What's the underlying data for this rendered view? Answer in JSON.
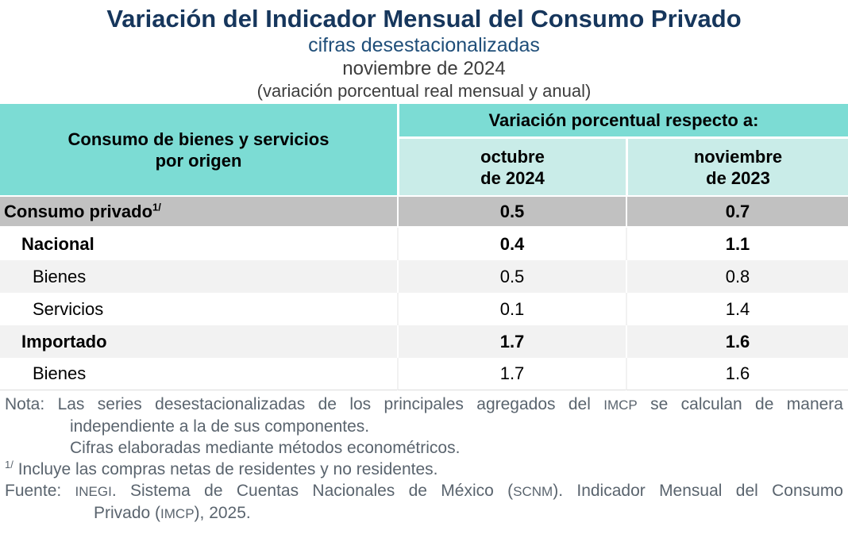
{
  "chart_data": {
    "type": "table",
    "title": "Variación del Indicador Mensual del Consumo Privado",
    "subtitle": "cifras desestacionalizadas",
    "period": "noviembre de 2024",
    "units_note": "(variación porcentual real mensual y anual)",
    "row_header": "Consumo de bienes y servicios\npor origen",
    "group_header": "Variación porcentual respecto a:",
    "col_headers": [
      "octubre\nde 2024",
      "noviembre\nde 2023"
    ],
    "rows": [
      {
        "label": "Consumo privado",
        "footnote_mark": "1/",
        "vs_octubre_2024": 0.5,
        "vs_noviembre_2023": 0.7
      },
      {
        "label": "Nacional",
        "vs_octubre_2024": 0.4,
        "vs_noviembre_2023": 1.1
      },
      {
        "label": "Bienes",
        "vs_octubre_2024": 0.5,
        "vs_noviembre_2023": 0.8
      },
      {
        "label": "Servicios",
        "vs_octubre_2024": 0.1,
        "vs_noviembre_2023": 1.4
      },
      {
        "label": "Importado",
        "vs_octubre_2024": 1.7,
        "vs_noviembre_2023": 1.6
      },
      {
        "label": "Bienes",
        "vs_octubre_2024": 1.7,
        "vs_noviembre_2023": 1.6
      }
    ]
  },
  "footnotes": {
    "nota_label": "Nota:",
    "nota_line1": "Las series desestacionalizadas de los principales agregados del IMCP se calculan de manera",
    "nota_line2": "independiente a la de sus componentes.",
    "nota_line3": "Cifras elaboradas mediante métodos econométricos.",
    "fn1_sup": "1/",
    "fn1_text": "Incluye las compras netas de residentes y no residentes.",
    "fuente_label": "Fuente:",
    "fuente_line1": "INEGI. Sistema de Cuentas Nacionales de México (SCNM). Indicador Mensual del Consumo",
    "fuente_line2": "Privado (IMCP), 2025."
  },
  "acronyms": [
    "INEGI",
    "IMCP",
    "SCNM"
  ],
  "colors": {
    "header_teal": "#7CDCD4",
    "subheader_teal": "#C9ECE8",
    "total_row_gray": "#C1C1C1",
    "stripe_gray": "#F2F2F2",
    "title_navy": "#16365C",
    "subtitle_blue": "#1F4E79",
    "footnote_gray": "#5A646E"
  }
}
